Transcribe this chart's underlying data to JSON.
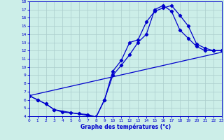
{
  "xlabel": "Graphe des températures (°c)",
  "bg_color": "#cceee8",
  "grid_color": "#aacccc",
  "line_color": "#0000cc",
  "xmin": 0,
  "xmax": 23,
  "ymin": 4,
  "ymax": 18,
  "yticks": [
    4,
    5,
    6,
    7,
    8,
    9,
    10,
    11,
    12,
    13,
    14,
    15,
    16,
    17,
    18
  ],
  "xticks": [
    0,
    1,
    2,
    3,
    4,
    5,
    6,
    7,
    8,
    9,
    10,
    11,
    12,
    13,
    14,
    15,
    16,
    17,
    18,
    19,
    20,
    21,
    22,
    23
  ],
  "curve1_x": [
    0,
    1,
    2,
    3,
    4,
    5,
    6,
    7,
    8,
    9,
    10,
    11,
    12,
    13,
    14,
    15,
    16,
    17,
    18,
    19,
    20,
    21,
    22,
    23
  ],
  "curve1_y": [
    6.5,
    6.0,
    5.5,
    4.8,
    4.5,
    4.4,
    4.3,
    4.2,
    3.9,
    6.0,
    9.5,
    10.8,
    13.0,
    13.3,
    15.5,
    16.8,
    17.2,
    17.5,
    16.3,
    15.0,
    12.8,
    12.3,
    12.0,
    12.0
  ],
  "curve2_x": [
    0,
    1,
    2,
    3,
    8,
    9,
    10,
    11,
    12,
    13,
    14,
    15,
    16,
    17,
    18,
    19,
    20,
    21,
    22,
    23
  ],
  "curve2_y": [
    6.5,
    6.0,
    5.5,
    4.8,
    3.9,
    6.0,
    9.0,
    10.2,
    11.5,
    13.0,
    14.0,
    17.0,
    17.5,
    16.8,
    14.5,
    13.5,
    12.5,
    12.0,
    12.0,
    12.0
  ],
  "curve3_x": [
    0,
    23
  ],
  "curve3_y": [
    6.5,
    11.8
  ]
}
